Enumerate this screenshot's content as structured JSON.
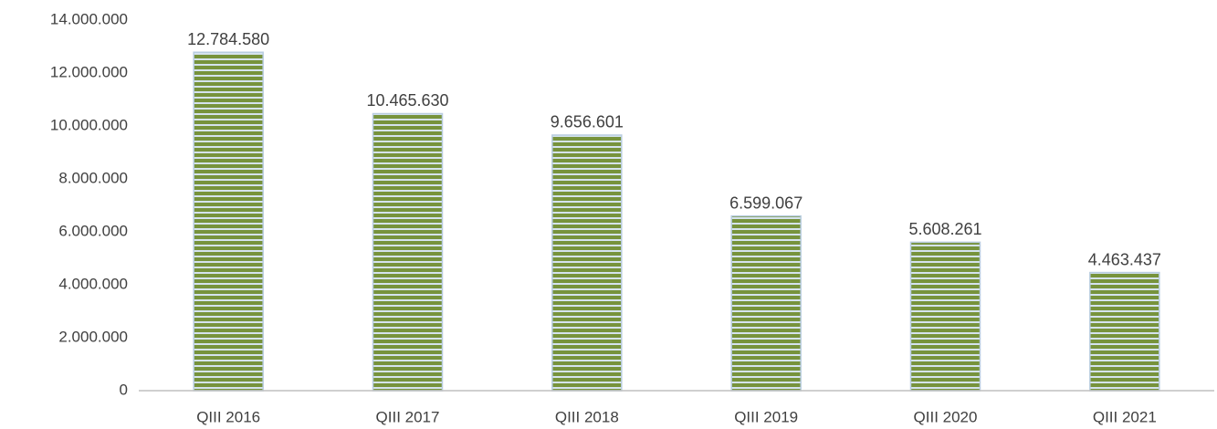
{
  "chart_data": {
    "type": "bar",
    "categories": [
      "QIII 2016",
      "QIII 2017",
      "QIII 2018",
      "QIII 2019",
      "QIII 2020",
      "QIII 2021"
    ],
    "values": [
      12784580,
      10465630,
      9656601,
      6599067,
      5608261,
      4463437
    ],
    "value_labels": [
      "12.784.580",
      "10.465.630",
      "9.656.601",
      "6.599.067",
      "5.608.261",
      "4.463.437"
    ],
    "color": "#77933c",
    "ylim": [
      0,
      14000000
    ],
    "yticks": [
      0,
      {
        "value": 2000000,
        "label": "2.000.000"
      },
      {
        "value": 4000000,
        "label": "4.000.000"
      },
      {
        "value": 6000000,
        "label": "6.000.000"
      },
      {
        "value": 8000000,
        "label": "8.000.000"
      },
      {
        "value": 10000000,
        "label": "10.000.000"
      },
      {
        "value": 12000000,
        "label": "12.000.000"
      },
      {
        "value": 14000000,
        "label": "14.000.000"
      }
    ],
    "grid": false
  }
}
